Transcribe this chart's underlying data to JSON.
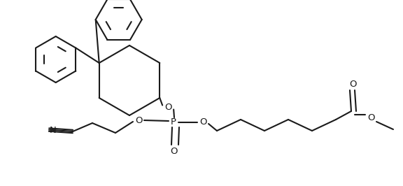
{
  "bg": "#ffffff",
  "lc": "#1a1a1a",
  "lw": 1.5,
  "fs": 9.5,
  "figsize": [
    5.76,
    2.66
  ],
  "dpi": 100,
  "xlim": [
    0,
    576
  ],
  "ylim": [
    0,
    266
  ]
}
